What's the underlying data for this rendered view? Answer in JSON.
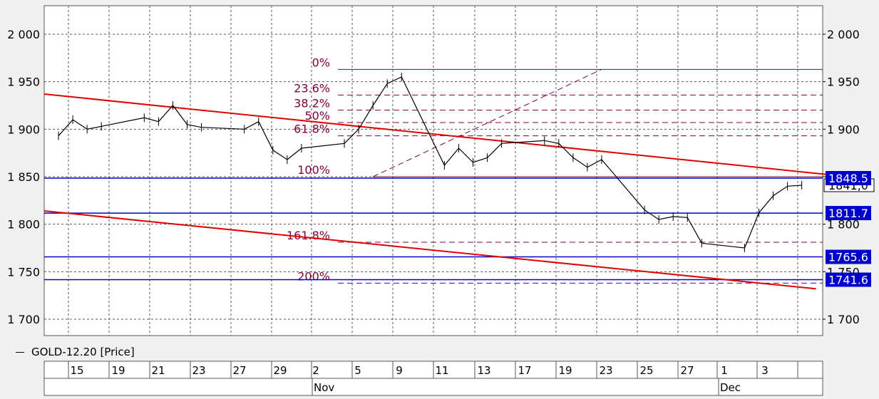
{
  "legend": {
    "label": "GOLD-12.20 [Price]"
  },
  "colors": {
    "price": "#000000",
    "trend": "#e00000",
    "level": "#0000cc",
    "fib": "#800040",
    "grid": "#555555",
    "panel": "#ffffff",
    "page": "#f0f0f0"
  },
  "y_axis": {
    "ticks": [
      1700,
      1750,
      1800,
      1850,
      1900,
      1950,
      2000
    ],
    "labels": [
      "1 700",
      "1 750",
      "1 800",
      "1 850",
      "1 900",
      "1 950",
      "2 000"
    ]
  },
  "x_axis": {
    "days": [
      "15",
      "19",
      "21",
      "23",
      "27",
      "29",
      "2",
      "5",
      "9",
      "11",
      "13",
      "17",
      "19",
      "23",
      "25",
      "27",
      "1",
      "3"
    ],
    "months": [
      "Nov",
      "Dec"
    ]
  },
  "chart_data": {
    "type": "line",
    "title": "",
    "series": [
      {
        "name": "GOLD-12.20 [Price]",
        "x": [
          "2020-10-13",
          "2020-10-14",
          "2020-10-15",
          "2020-10-16",
          "2020-10-19",
          "2020-10-20",
          "2020-10-21",
          "2020-10-22",
          "2020-10-23",
          "2020-10-26",
          "2020-10-27",
          "2020-10-28",
          "2020-10-29",
          "2020-10-30",
          "2020-11-02",
          "2020-11-03",
          "2020-11-04",
          "2020-11-05",
          "2020-11-06",
          "2020-11-09",
          "2020-11-10",
          "2020-11-11",
          "2020-11-12",
          "2020-11-13",
          "2020-11-16",
          "2020-11-17",
          "2020-11-18",
          "2020-11-19",
          "2020-11-20",
          "2020-11-23",
          "2020-11-24",
          "2020-11-25",
          "2020-11-26",
          "2020-11-27",
          "2020-11-30",
          "2020-12-01",
          "2020-12-02",
          "2020-12-03",
          "2020-12-04"
        ],
        "y": [
          1893,
          1910,
          1900,
          1903,
          1912,
          1908,
          1925,
          1905,
          1902,
          1900,
          1908,
          1878,
          1868,
          1880,
          1885,
          1900,
          1925,
          1948,
          1955,
          1862,
          1880,
          1865,
          1870,
          1885,
          1888,
          1885,
          1870,
          1860,
          1868,
          1815,
          1805,
          1808,
          1807,
          1780,
          1775,
          1812,
          1830,
          1840,
          1841
        ]
      }
    ],
    "current_price": "1841,0",
    "levels": [
      {
        "label": "1848.5",
        "value": 1848.5
      },
      {
        "label": "1811.7",
        "value": 1811.7
      },
      {
        "label": "1765.6",
        "value": 1765.6
      },
      {
        "label": "1741.6",
        "value": 1741.6
      }
    ],
    "trendlines": [
      {
        "from": [
          "2020-10-12",
          1937
        ],
        "to": [
          "2020-12-06",
          1852
        ]
      },
      {
        "from": [
          "2020-10-12",
          1814
        ],
        "to": [
          "2020-12-05",
          1732
        ]
      }
    ],
    "fibonacci": {
      "anchor_low": {
        "date": "2020-11-04",
        "value": 1850
      },
      "anchor_high": {
        "date": "2020-11-20",
        "value": 1963
      },
      "levels": [
        {
          "label": "0%",
          "value": 1963
        },
        {
          "label": "23.6%",
          "value": 1936
        },
        {
          "label": "38.2%",
          "value": 1920
        },
        {
          "label": "50%",
          "value": 1907
        },
        {
          "label": "61.8%",
          "value": 1893
        },
        {
          "label": "100%",
          "value": 1850
        },
        {
          "label": "161.8%",
          "value": 1781
        },
        {
          "label": "200%",
          "value": 1738
        }
      ]
    },
    "ylim": [
      1680,
      2035
    ],
    "grid": true
  }
}
